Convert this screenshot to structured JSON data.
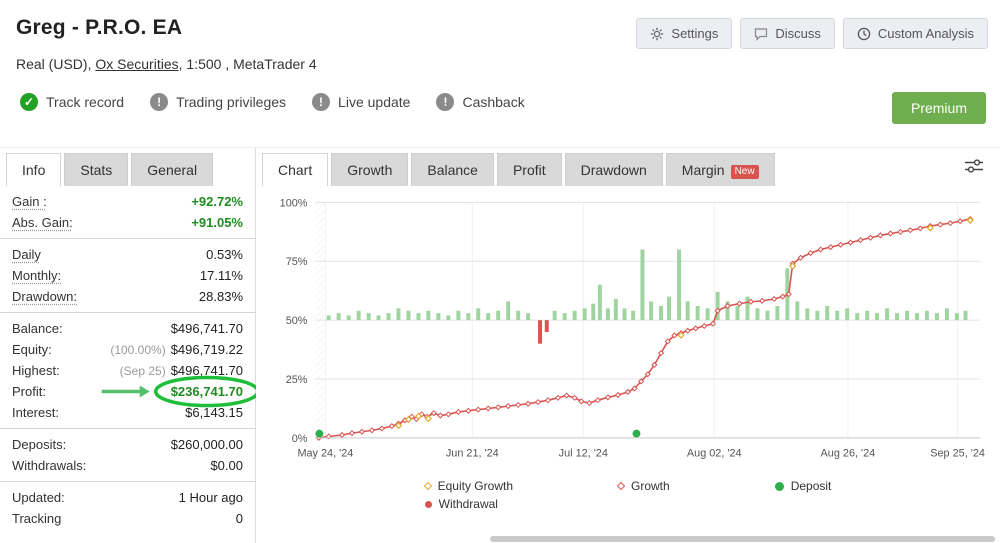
{
  "header": {
    "title": "Greg - P.R.O. EA",
    "subtitle_prefix": "Real (USD), ",
    "broker": "Ox Securities",
    "subtitle_suffix": ", 1:500 , MetaTrader 4",
    "buttons": [
      {
        "label": "Settings",
        "icon": "gear"
      },
      {
        "label": "Discuss",
        "icon": "speech"
      },
      {
        "label": "Custom Analysis",
        "icon": "clock"
      }
    ],
    "badges": [
      {
        "label": "Track record",
        "type": "ok",
        "mark": "✓"
      },
      {
        "label": "Trading privileges",
        "type": "info",
        "mark": "!"
      },
      {
        "label": "Live update",
        "type": "info",
        "mark": "!"
      },
      {
        "label": "Cashback",
        "type": "info",
        "mark": "!"
      }
    ],
    "premium_label": "Premium"
  },
  "colors": {
    "accent_green": "#23a127",
    "premium_green": "#6fae4e",
    "highlight_circle": "#1fbe3a",
    "tab_badge_red": "#d9534f"
  },
  "stats_panel": {
    "tabs": [
      {
        "label": "Info",
        "active": true
      },
      {
        "label": "Stats",
        "active": false
      },
      {
        "label": "General",
        "active": false
      }
    ],
    "groups": [
      [
        {
          "label": "Gain :",
          "value": "+92.72%",
          "green": true,
          "u": true
        },
        {
          "label": "Abs. Gain:",
          "value": "+91.05%",
          "green": true,
          "u": true
        }
      ],
      [
        {
          "label": "Daily",
          "value": "0.53%",
          "u": true
        },
        {
          "label": "Monthly:",
          "value": "17.11%",
          "u": true
        },
        {
          "label": "Drawdown:",
          "value": "28.83%",
          "u": true
        }
      ],
      [
        {
          "label": "Balance:",
          "value": "$496,741.70"
        },
        {
          "label": "Equity:",
          "prefix": "(100.00%)",
          "value": "$496,719.22"
        },
        {
          "label": "Highest:",
          "prefix": "(Sep 25)",
          "value": "$496,741.70"
        },
        {
          "label": "Profit:",
          "value": "$236,741.70",
          "green": true,
          "highlight": true
        },
        {
          "label": "Interest:",
          "value": "$6,143.15"
        }
      ],
      [
        {
          "label": "Deposits:",
          "value": "$260,000.00"
        },
        {
          "label": "Withdrawals:",
          "value": "$0.00"
        }
      ],
      [
        {
          "label": "Updated:",
          "value": "1 Hour ago"
        },
        {
          "label": "Tracking",
          "value": "0"
        }
      ]
    ]
  },
  "chart_panel": {
    "tabs": [
      {
        "label": "Chart",
        "active": true
      },
      {
        "label": "Growth"
      },
      {
        "label": "Balance"
      },
      {
        "label": "Profit"
      },
      {
        "label": "Drawdown"
      },
      {
        "label": "Margin",
        "badge": "New"
      }
    ],
    "legend": [
      {
        "label": "Equity Growth",
        "marker": "diamond-yellow",
        "col": 1
      },
      {
        "label": "Withdrawal",
        "marker": "dot-red",
        "col": 1
      },
      {
        "label": "Growth",
        "marker": "diamond-red",
        "col": 2
      },
      {
        "label": "Deposit",
        "marker": "dot-green",
        "col": 3
      }
    ]
  },
  "chart_data": {
    "type": "line",
    "title": "Account growth (%)",
    "ylim": [
      0,
      100
    ],
    "y_ticks": [
      0,
      25,
      50,
      75,
      100
    ],
    "y_tick_labels": [
      "0%",
      "25%",
      "50%",
      "75%",
      "100%"
    ],
    "x_tick_labels": [
      "May 24, '24",
      "Jun 21, '24",
      "Jul 12, '24",
      "Aug 02, '24",
      "Aug 26, '24",
      "Sep 25, '24"
    ],
    "x_tick_pos": [
      0.015,
      0.236,
      0.403,
      0.6,
      0.801,
      0.966
    ],
    "series": [
      {
        "name": "Growth",
        "color": "#d9534f",
        "marker": "diamond",
        "points": [
          [
            0.005,
            0
          ],
          [
            0.02,
            0.6
          ],
          [
            0.04,
            1.2
          ],
          [
            0.055,
            2
          ],
          [
            0.07,
            2.6
          ],
          [
            0.085,
            3.2
          ],
          [
            0.1,
            4
          ],
          [
            0.115,
            5
          ],
          [
            0.125,
            6
          ],
          [
            0.135,
            7.5
          ],
          [
            0.145,
            9
          ],
          [
            0.152,
            8
          ],
          [
            0.16,
            10
          ],
          [
            0.168,
            9
          ],
          [
            0.178,
            10.5
          ],
          [
            0.188,
            9.5
          ],
          [
            0.2,
            10
          ],
          [
            0.215,
            11
          ],
          [
            0.23,
            11.5
          ],
          [
            0.245,
            12
          ],
          [
            0.26,
            12.5
          ],
          [
            0.275,
            13
          ],
          [
            0.29,
            13.5
          ],
          [
            0.305,
            14
          ],
          [
            0.32,
            14.5
          ],
          [
            0.335,
            15.2
          ],
          [
            0.35,
            16
          ],
          [
            0.365,
            17
          ],
          [
            0.378,
            18
          ],
          [
            0.39,
            17
          ],
          [
            0.4,
            15.5
          ],
          [
            0.412,
            14.8
          ],
          [
            0.425,
            16
          ],
          [
            0.44,
            17.2
          ],
          [
            0.455,
            18.2
          ],
          [
            0.47,
            19.5
          ],
          [
            0.48,
            21
          ],
          [
            0.49,
            24
          ],
          [
            0.5,
            27
          ],
          [
            0.51,
            31
          ],
          [
            0.52,
            36
          ],
          [
            0.53,
            41
          ],
          [
            0.54,
            43.5
          ],
          [
            0.55,
            44.5
          ],
          [
            0.56,
            45.5
          ],
          [
            0.572,
            46.5
          ],
          [
            0.585,
            47.5
          ],
          [
            0.598,
            48.5
          ],
          [
            0.605,
            54
          ],
          [
            0.62,
            56
          ],
          [
            0.638,
            57
          ],
          [
            0.655,
            57.8
          ],
          [
            0.672,
            58.2
          ],
          [
            0.69,
            59
          ],
          [
            0.703,
            60
          ],
          [
            0.712,
            61
          ],
          [
            0.718,
            74
          ],
          [
            0.73,
            76.5
          ],
          [
            0.745,
            78.5
          ],
          [
            0.76,
            80
          ],
          [
            0.775,
            81
          ],
          [
            0.79,
            82
          ],
          [
            0.805,
            83
          ],
          [
            0.82,
            84
          ],
          [
            0.835,
            85
          ],
          [
            0.85,
            86
          ],
          [
            0.865,
            86.8
          ],
          [
            0.88,
            87.5
          ],
          [
            0.895,
            88.2
          ],
          [
            0.91,
            89
          ],
          [
            0.925,
            90
          ],
          [
            0.94,
            90.6
          ],
          [
            0.955,
            91.2
          ],
          [
            0.97,
            92
          ],
          [
            0.985,
            93
          ]
        ]
      },
      {
        "name": "Equity Growth",
        "color": "#e0a92e",
        "marker": "diamond",
        "points": [
          [
            0.125,
            5.2
          ],
          [
            0.14,
            7.8
          ],
          [
            0.155,
            9.2
          ],
          [
            0.17,
            8.2
          ],
          [
            0.55,
            43.6
          ],
          [
            0.718,
            73
          ],
          [
            0.925,
            89.2
          ],
          [
            0.985,
            92.4
          ]
        ]
      }
    ],
    "bars": {
      "baseline": 50,
      "up_color": "#9fd49f",
      "down_color": "#e05252",
      "up": [
        [
          0.02,
          2
        ],
        [
          0.035,
          3
        ],
        [
          0.05,
          2
        ],
        [
          0.065,
          4
        ],
        [
          0.08,
          3
        ],
        [
          0.095,
          2
        ],
        [
          0.11,
          3
        ],
        [
          0.125,
          5
        ],
        [
          0.14,
          4
        ],
        [
          0.155,
          3
        ],
        [
          0.17,
          4
        ],
        [
          0.185,
          3
        ],
        [
          0.2,
          2
        ],
        [
          0.215,
          4
        ],
        [
          0.23,
          3
        ],
        [
          0.245,
          5
        ],
        [
          0.26,
          3
        ],
        [
          0.275,
          4
        ],
        [
          0.29,
          8
        ],
        [
          0.305,
          4
        ],
        [
          0.32,
          3
        ],
        [
          0.36,
          4
        ],
        [
          0.375,
          3
        ],
        [
          0.39,
          4
        ],
        [
          0.405,
          5
        ],
        [
          0.418,
          7
        ],
        [
          0.428,
          15
        ],
        [
          0.44,
          5
        ],
        [
          0.452,
          9
        ],
        [
          0.465,
          5
        ],
        [
          0.478,
          4
        ],
        [
          0.492,
          30
        ],
        [
          0.505,
          8
        ],
        [
          0.52,
          6
        ],
        [
          0.532,
          10
        ],
        [
          0.547,
          30
        ],
        [
          0.56,
          8
        ],
        [
          0.575,
          6
        ],
        [
          0.59,
          5
        ],
        [
          0.605,
          12
        ],
        [
          0.62,
          8
        ],
        [
          0.635,
          6
        ],
        [
          0.65,
          10
        ],
        [
          0.665,
          5
        ],
        [
          0.68,
          4
        ],
        [
          0.695,
          6
        ],
        [
          0.71,
          22
        ],
        [
          0.725,
          8
        ],
        [
          0.74,
          5
        ],
        [
          0.755,
          4
        ],
        [
          0.77,
          6
        ],
        [
          0.785,
          4
        ],
        [
          0.8,
          5
        ],
        [
          0.815,
          3
        ],
        [
          0.83,
          4
        ],
        [
          0.845,
          3
        ],
        [
          0.86,
          5
        ],
        [
          0.875,
          3
        ],
        [
          0.89,
          4
        ],
        [
          0.905,
          3
        ],
        [
          0.92,
          4
        ],
        [
          0.935,
          3
        ],
        [
          0.95,
          5
        ],
        [
          0.965,
          3
        ],
        [
          0.978,
          4
        ]
      ],
      "down": [
        [
          0.338,
          10
        ],
        [
          0.348,
          5
        ]
      ]
    },
    "deposits": {
      "color": "#2eaf4e",
      "x": [
        0.006,
        0.483
      ]
    },
    "grid": true,
    "legend_position": "bottom"
  }
}
